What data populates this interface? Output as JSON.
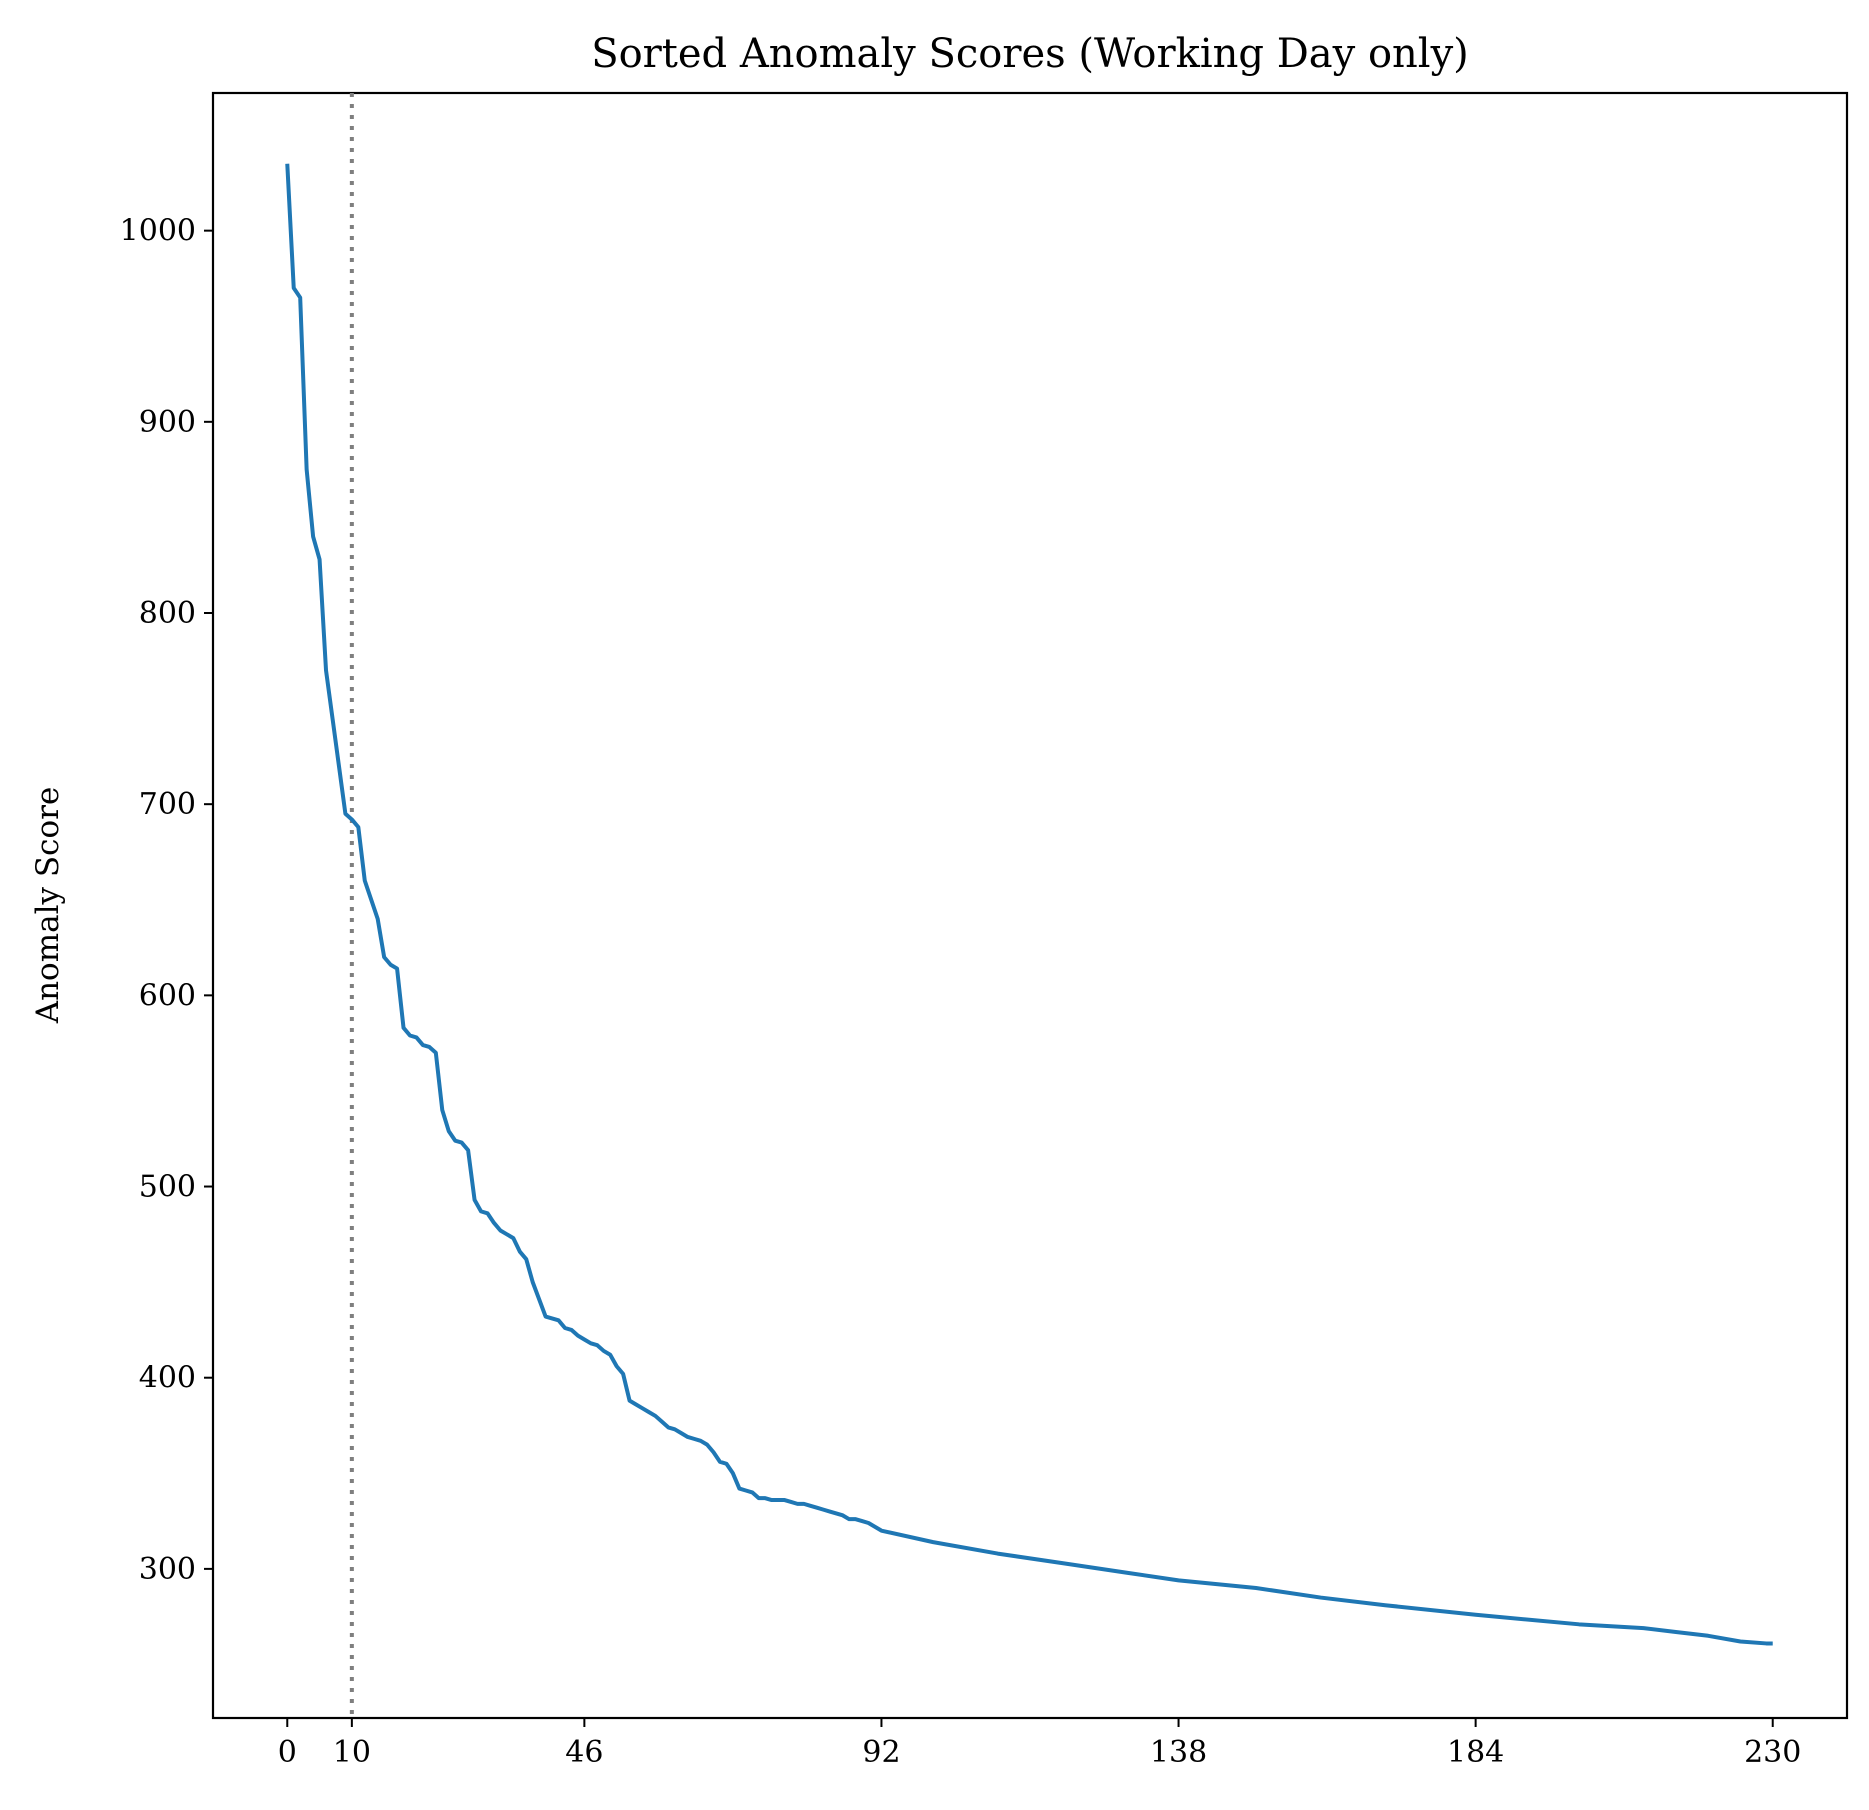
{
  "chart_data": {
    "type": "line",
    "title": "Sorted Anomaly Scores (Working Day only)",
    "xlabel": "",
    "ylabel": "Anomaly Score",
    "xlim": [
      -11.5,
      241.5
    ],
    "ylim": [
      222,
      1072
    ],
    "xticks": [
      0,
      10,
      46,
      92,
      138,
      184,
      230
    ],
    "yticks": [
      300,
      400,
      500,
      600,
      700,
      800,
      900,
      1000
    ],
    "vline": {
      "x": 10,
      "style": "dotted",
      "color": "#7f7f7f"
    },
    "grid": false,
    "line_color": "#1f77b4",
    "series": [
      {
        "x": [
          0,
          1,
          2,
          3,
          4,
          5,
          6,
          7,
          8,
          9,
          10,
          11,
          12,
          13,
          14,
          15,
          16,
          17,
          18,
          19,
          20,
          21,
          22,
          23,
          24,
          25,
          26,
          27,
          28,
          29,
          30,
          31,
          32,
          33,
          34,
          35,
          36,
          37,
          38,
          39,
          40,
          41,
          42,
          43,
          44,
          45,
          46,
          47,
          48,
          49,
          50,
          51,
          52,
          53,
          54,
          55,
          56,
          57,
          58,
          59,
          60,
          61,
          62,
          63,
          64,
          65,
          66,
          67,
          68,
          69,
          70,
          71,
          72,
          73,
          74,
          75,
          76,
          77,
          78,
          79,
          80,
          81,
          82,
          83,
          84,
          85,
          86,
          87,
          88,
          89,
          90,
          92,
          100,
          110,
          120,
          130,
          138,
          150,
          160,
          170,
          184,
          200,
          210,
          215,
          220,
          225,
          229,
          230
        ],
        "y": [
          1035,
          970,
          965,
          875,
          840,
          828,
          770,
          745,
          720,
          695,
          692,
          688,
          660,
          650,
          640,
          620,
          616,
          614,
          583,
          579,
          578,
          574,
          573,
          570,
          540,
          529,
          524,
          523,
          519,
          493,
          487,
          486,
          481,
          477,
          475,
          473,
          466,
          462,
          450,
          441,
          432,
          431,
          430,
          426,
          425,
          422,
          420,
          418,
          417,
          414,
          412,
          406,
          402,
          388,
          386,
          384,
          382,
          380,
          377,
          374,
          373,
          371,
          369,
          368,
          367,
          365,
          361,
          356,
          355,
          350,
          342,
          341,
          340,
          337,
          337,
          336,
          336,
          336,
          335,
          334,
          334,
          333,
          332,
          331,
          330,
          329,
          328,
          326,
          326,
          325,
          324,
          320,
          314,
          308,
          303,
          298,
          294,
          290,
          285,
          281,
          276,
          271,
          269,
          267,
          265,
          262,
          261,
          261
        ]
      }
    ]
  }
}
